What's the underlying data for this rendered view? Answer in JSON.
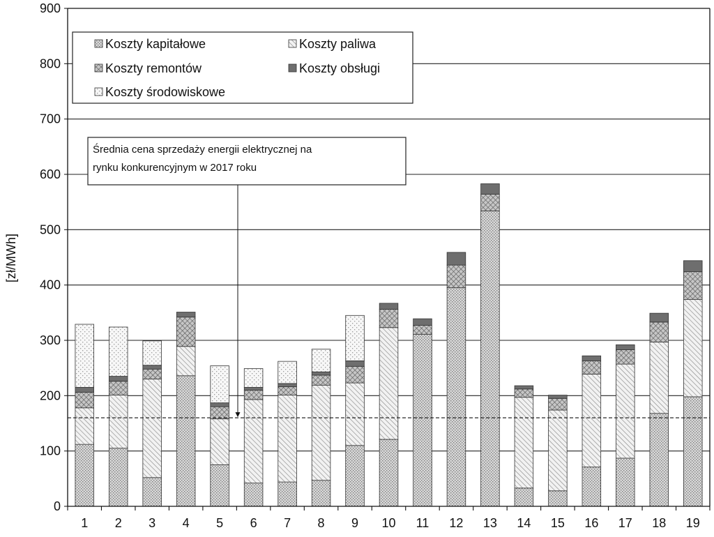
{
  "chart_data": {
    "type": "bar",
    "stacked": true,
    "ylabel": "[zł/MWh]",
    "xlabel": "",
    "ylim": [
      0,
      900
    ],
    "yticks": [
      0,
      100,
      200,
      300,
      400,
      500,
      600,
      700,
      800,
      900
    ],
    "grid": true,
    "legend_position": "top-left",
    "categories": [
      "1",
      "2",
      "3",
      "4",
      "5",
      "6",
      "7",
      "8",
      "9",
      "10",
      "11",
      "12",
      "13",
      "14",
      "15",
      "16",
      "17",
      "18",
      "19"
    ],
    "series": [
      {
        "name": "Koszty kapitałowe",
        "pattern": "dots-dense",
        "values": [
          112,
          105,
          52,
          236,
          75,
          42,
          44,
          47,
          110,
          121,
          311,
          395,
          534,
          33,
          28,
          71,
          87,
          168,
          198
        ]
      },
      {
        "name": "Koszty paliwa",
        "pattern": "diagonal-hatch",
        "values": [
          66,
          96,
          178,
          53,
          83,
          151,
          157,
          172,
          113,
          202,
          0,
          0,
          0,
          164,
          146,
          168,
          170,
          129,
          176
        ]
      },
      {
        "name": "Koszty remontów",
        "pattern": "crosshatch",
        "values": [
          28,
          25,
          18,
          53,
          22,
          17,
          15,
          18,
          30,
          33,
          16,
          41,
          30,
          15,
          21,
          24,
          26,
          36,
          50
        ]
      },
      {
        "name": "Koszty obsługi",
        "pattern": "solid-grey",
        "values": [
          9,
          9,
          7,
          9,
          7,
          5,
          6,
          6,
          10,
          11,
          12,
          23,
          19,
          6,
          6,
          9,
          9,
          16,
          20
        ]
      },
      {
        "name": "Koszty środowiskowe",
        "pattern": "sparse-dots",
        "values": [
          114,
          89,
          44,
          0,
          67,
          34,
          40,
          41,
          82,
          0,
          0,
          0,
          0,
          0,
          0,
          0,
          0,
          0,
          0
        ]
      }
    ],
    "reference_line": {
      "value": 160,
      "style": "dashed",
      "label": "Średnia cena sprzedaży energii elektrycznej na rynku konkurencyjnym w 2017 roku",
      "label_lines": [
        "Średnia cena sprzedaży energii elektrycznej na",
        "rynku konkurencyjnym w 2017 roku"
      ]
    }
  },
  "legend": {
    "items": [
      {
        "label": "Koszty kapitałowe",
        "pattern": "dots-dense"
      },
      {
        "label": "Koszty paliwa",
        "pattern": "diagonal-hatch"
      },
      {
        "label": "Koszty remontów",
        "pattern": "crosshatch"
      },
      {
        "label": "Koszty obsługi",
        "pattern": "solid-grey"
      },
      {
        "label": "Koszty środowiskowe",
        "pattern": "sparse-dots"
      }
    ]
  }
}
